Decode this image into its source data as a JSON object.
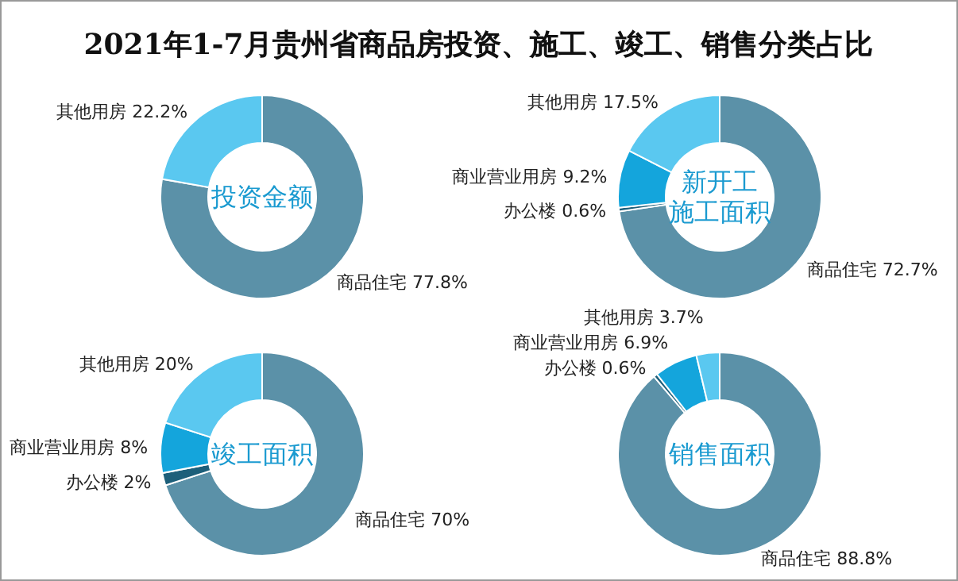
{
  "chart_data": [
    {
      "type": "donut",
      "title": "投资金额",
      "annotations": [
        "2021年1-7月贵州省商品房投资、施工、竣工、销售分类占比"
      ],
      "categories": [
        "商品住宅",
        "其他用房"
      ],
      "values": [
        77.8,
        22.2
      ],
      "value_labels": [
        "77.8%",
        "22.2%"
      ],
      "colors": [
        "#5b91a8",
        "#5ac8f0"
      ]
    },
    {
      "type": "donut",
      "title": "新开工施工面积",
      "categories": [
        "商品住宅",
        "办公楼",
        "商业营业用房",
        "其他用房"
      ],
      "values": [
        72.7,
        0.6,
        9.2,
        17.5
      ],
      "value_labels": [
        "72.7%",
        "0.6%",
        "9.2%",
        "17.5%"
      ],
      "colors": [
        "#5b91a8",
        "#1d5f7a",
        "#14a5dc",
        "#5ac8f0"
      ]
    },
    {
      "type": "donut",
      "title": "竣工面积",
      "categories": [
        "商品住宅",
        "办公楼",
        "商业营业用房",
        "其他用房"
      ],
      "values": [
        70,
        2,
        8,
        20
      ],
      "value_labels": [
        "70%",
        "2%",
        "8%",
        "20%"
      ],
      "colors": [
        "#5b91a8",
        "#1d5f7a",
        "#14a5dc",
        "#5ac8f0"
      ]
    },
    {
      "type": "donut",
      "title": "销售面积",
      "categories": [
        "商品住宅",
        "办公楼",
        "商业营业用房",
        "其他用房"
      ],
      "values": [
        88.8,
        0.6,
        6.9,
        3.7
      ],
      "value_labels": [
        "88.8%",
        "0.6%",
        "6.9%",
        "3.7%"
      ],
      "colors": [
        "#5b91a8",
        "#1d5f7a",
        "#14a5dc",
        "#5ac8f0"
      ]
    }
  ]
}
